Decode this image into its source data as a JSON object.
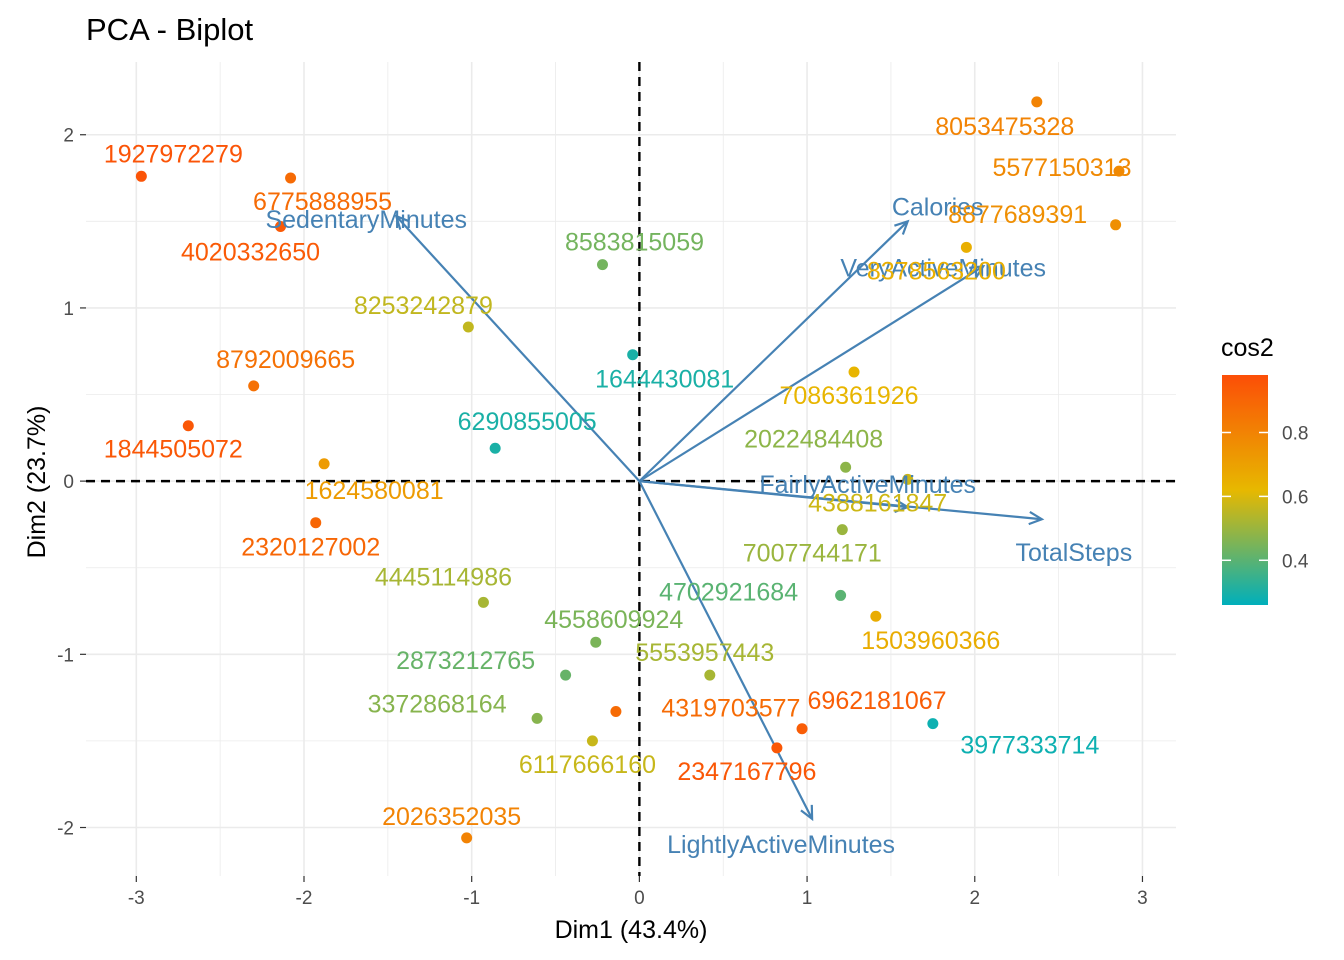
{
  "chart_data": {
    "type": "scatter",
    "title": "PCA - Biplot",
    "xlabel": "Dim1 (43.4%)",
    "ylabel": "Dim2 (23.7%)",
    "xlim": [
      -3.3,
      3.2
    ],
    "ylim": [
      -2.28,
      2.42
    ],
    "x_ticks": [
      -3,
      -2,
      -1,
      0,
      1,
      2,
      3
    ],
    "y_ticks": [
      -2,
      -1,
      0,
      1,
      2
    ],
    "grid": true,
    "legend": {
      "title": "cos2",
      "placement": "right",
      "ticks": [
        0.4,
        0.6,
        0.8
      ],
      "range": [
        0.26,
        0.98
      ],
      "colors": [
        "#00AFBB",
        "#E7B800",
        "#FC4E07"
      ]
    },
    "individuals": [
      {
        "label": "1927972279",
        "x": -2.97,
        "y": 1.76,
        "cos2": 0.96
      },
      {
        "label": "6775888955",
        "x": -2.08,
        "y": 1.75,
        "cos2": 0.88
      },
      {
        "label": "4020332650",
        "x": -2.14,
        "y": 1.47,
        "cos2": 0.94
      },
      {
        "label": "8583815059",
        "x": -0.22,
        "y": 1.25,
        "cos2": 0.44
      },
      {
        "label": "8253242879",
        "x": -1.02,
        "y": 0.89,
        "cos2": 0.56
      },
      {
        "label": "1644430081",
        "x": -0.04,
        "y": 0.73,
        "cos2": 0.3
      },
      {
        "label": "8792009665",
        "x": -2.3,
        "y": 0.55,
        "cos2": 0.86
      },
      {
        "label": "1844505072",
        "x": -2.69,
        "y": 0.32,
        "cos2": 0.95
      },
      {
        "label": "6290855005",
        "x": -0.86,
        "y": 0.19,
        "cos2": 0.3
      },
      {
        "label": "1624580081",
        "x": -1.88,
        "y": 0.1,
        "cos2": 0.72
      },
      {
        "label": "2320127002",
        "x": -1.93,
        "y": -0.24,
        "cos2": 0.9
      },
      {
        "label": "8053475328",
        "x": 2.37,
        "y": 2.19,
        "cos2": 0.8
      },
      {
        "label": "5577150313",
        "x": 2.86,
        "y": 1.79,
        "cos2": 0.78
      },
      {
        "label": "8877689391",
        "x": 2.84,
        "y": 1.48,
        "cos2": 0.76
      },
      {
        "label": "8378563200",
        "x": 1.95,
        "y": 1.35,
        "cos2": 0.65
      },
      {
        "label": "7086361926",
        "x": 1.28,
        "y": 0.63,
        "cos2": 0.63
      },
      {
        "label": "2022484408",
        "x": 1.23,
        "y": 0.08,
        "cos2": 0.48
      },
      {
        "label": "4388161847",
        "x": 1.6,
        "y": 0.01,
        "cos2": 0.58
      },
      {
        "label": "7007744171",
        "x": 1.21,
        "y": -0.28,
        "cos2": 0.5
      },
      {
        "label": "4702921684",
        "x": 1.2,
        "y": -0.66,
        "cos2": 0.4
      },
      {
        "label": "1503960366",
        "x": 1.41,
        "y": -0.78,
        "cos2": 0.66
      },
      {
        "label": "5553957443",
        "x": 0.42,
        "y": -1.12,
        "cos2": 0.52
      },
      {
        "label": "6962181067",
        "x": 0.97,
        "y": -1.43,
        "cos2": 0.93
      },
      {
        "label": "3977333714",
        "x": 1.75,
        "y": -1.4,
        "cos2": 0.28
      },
      {
        "label": "4319703577",
        "x": -0.14,
        "y": -1.33,
        "cos2": 0.88
      },
      {
        "label": "2347167796",
        "x": 0.82,
        "y": -1.54,
        "cos2": 0.95
      },
      {
        "label": "4445114986",
        "x": -0.93,
        "y": -0.7,
        "cos2": 0.52
      },
      {
        "label": "4558609924",
        "x": -0.26,
        "y": -0.93,
        "cos2": 0.45
      },
      {
        "label": "2873212765",
        "x": -0.44,
        "y": -1.12,
        "cos2": 0.42
      },
      {
        "label": "3372868164",
        "x": -0.61,
        "y": -1.37,
        "cos2": 0.47
      },
      {
        "label": "6117666160",
        "x": -0.28,
        "y": -1.5,
        "cos2": 0.57
      },
      {
        "label": "2026352035",
        "x": -1.03,
        "y": -2.06,
        "cos2": 0.8
      }
    ],
    "variables": [
      {
        "label": "SedentaryMinutes",
        "x": -1.45,
        "y": 1.53
      },
      {
        "label": "Calories",
        "x": 1.6,
        "y": 1.5
      },
      {
        "label": "VeryActiveMinutes",
        "x": 2.05,
        "y": 1.24
      },
      {
        "label": "FairlyActiveMinutes",
        "x": 1.6,
        "y": -0.15
      },
      {
        "label": "TotalSteps",
        "x": 2.4,
        "y": -0.22
      },
      {
        "label": "LightlyActiveMinutes",
        "x": 1.03,
        "y": -1.95
      }
    ]
  }
}
